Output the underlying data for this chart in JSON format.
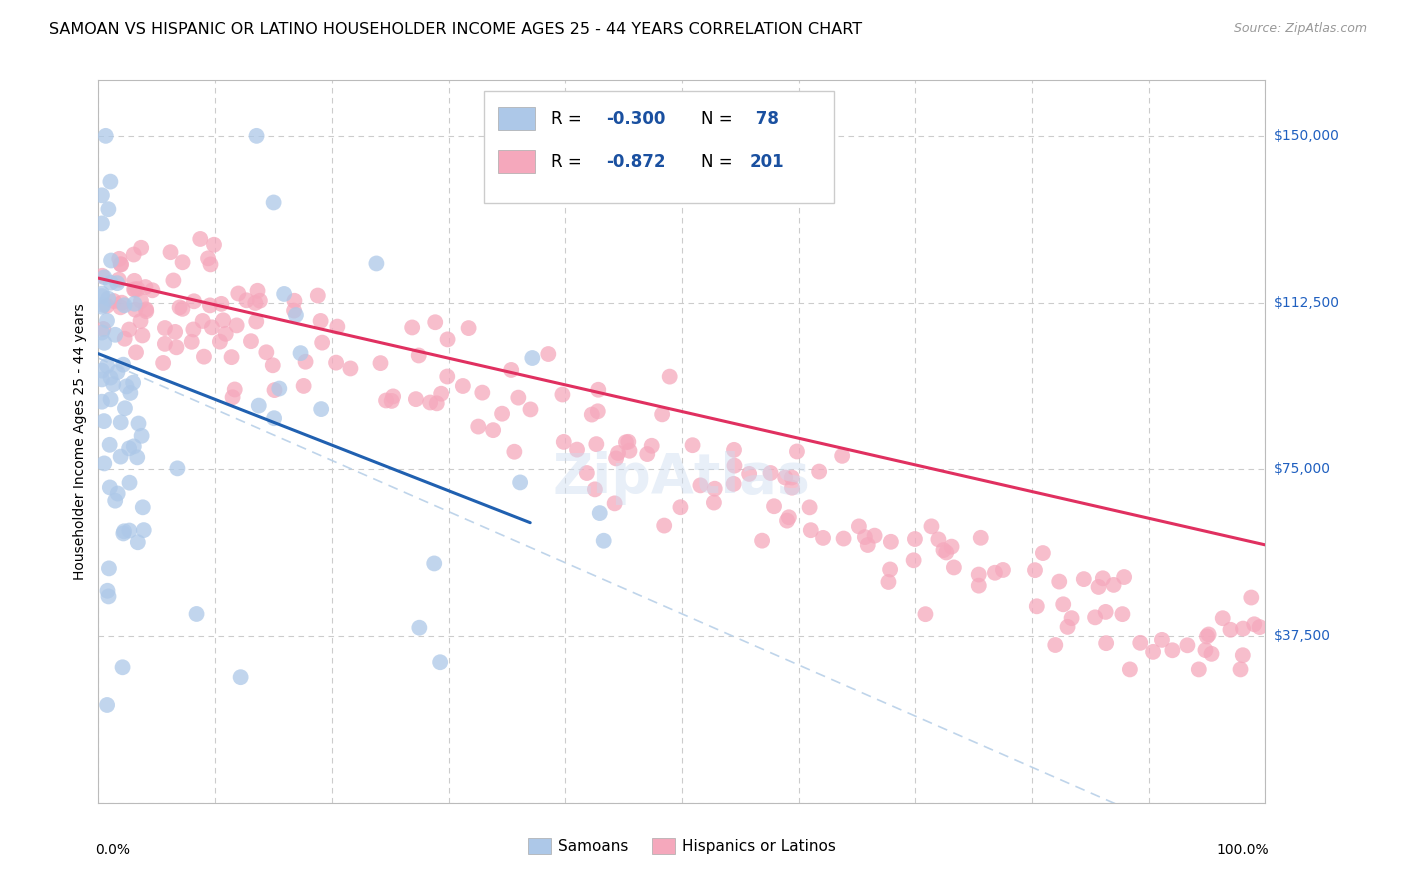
{
  "title": "SAMOAN VS HISPANIC OR LATINO HOUSEHOLDER INCOME AGES 25 - 44 YEARS CORRELATION CHART",
  "source": "Source: ZipAtlas.com",
  "ylabel": "Householder Income Ages 25 - 44 years",
  "ytick_labels": [
    "$37,500",
    "$75,000",
    "$112,500",
    "$150,000"
  ],
  "ytick_values": [
    37500,
    75000,
    112500,
    150000
  ],
  "ymin": 0,
  "ymax": 162500,
  "xmin": 0.0,
  "xmax": 1.0,
  "samoan_color": "#adc8e8",
  "hispanic_color": "#f5a8bc",
  "samoan_line_color": "#2060b0",
  "hispanic_line_color": "#e03060",
  "dashed_line_color": "#b8d0e8",
  "watermark": "ZipAtlas",
  "title_fontsize": 11.5,
  "source_fontsize": 9,
  "axis_label_fontsize": 10,
  "tick_fontsize": 10,
  "legend_fontsize": 12,
  "background_color": "#ffffff",
  "grid_color": "#cccccc",
  "legend_text_color": "#1a50a0",
  "ytick_color": "#2060c0"
}
